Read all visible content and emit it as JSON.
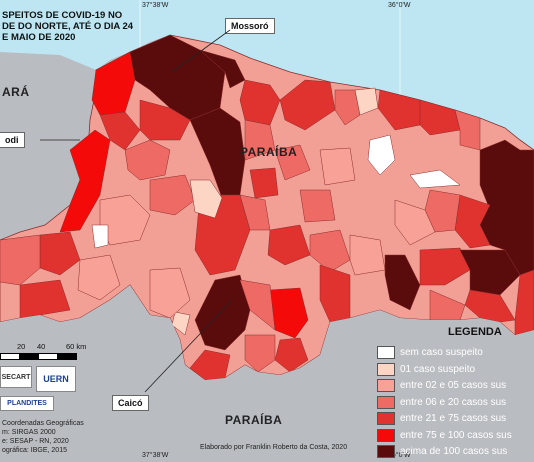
{
  "title_lines": [
    "SPEITOS DE COVID-19 NO",
    "DE DO NORTE, ATÉ O DIA 24",
    "E MAIO DE 2020"
  ],
  "coords": {
    "top_left": "37°38'W",
    "top_right": "36°0'W",
    "bottom_left": "37°38'W",
    "bottom_right": "36°0'W"
  },
  "states": {
    "ceara": "ARÁ",
    "paraiba_center": "PARAÍBA",
    "paraiba_south": "PARAÍBA"
  },
  "callouts": {
    "mossoro": "Mossoró",
    "pau_dos_ferros": "odi",
    "caico": "Caicó"
  },
  "scale_bar": {
    "ticks": [
      "20",
      "40",
      "60 km"
    ]
  },
  "legend": {
    "title": "LEGENDA",
    "items": [
      {
        "label": "sem caso suspeito",
        "color": "#ffffff"
      },
      {
        "label": "01 caso suspeito",
        "color": "#fcd5c4"
      },
      {
        "label": "entre 02 e 05 casos sus",
        "color": "#f8a196"
      },
      {
        "label": "entre 06 e 20 casos sus",
        "color": "#ee6a64"
      },
      {
        "label": "entre 21 e 75 casos sus",
        "color": "#e0322f"
      },
      {
        "label": "entre 75 e 100 casos sus",
        "color": "#f50a0a"
      },
      {
        "label": "acima de 100 casos sus",
        "color": "#5a0c0c"
      }
    ]
  },
  "credits": {
    "line1": "Coordenadas Geográficas",
    "line2": "m: SIRGAS 2000",
    "line3": "e: SESAP - RN, 2020",
    "line4": "ográfica: IBGE, 2015",
    "author": "Elaborado por Franklin Roberto da Costa, 2020"
  },
  "logos": {
    "logo1": "SECART",
    "logo2": "UERN",
    "logo3": "PLANDITES"
  },
  "colors": {
    "sea": "#bde6f2",
    "land": "#b9bcc0",
    "graticule": "#ffffff"
  }
}
